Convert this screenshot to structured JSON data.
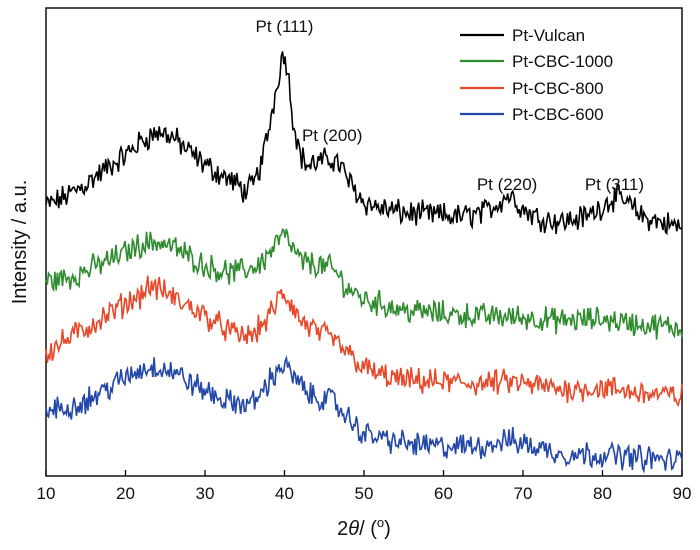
{
  "chart_data": {
    "type": "line",
    "xlabel_main": "2",
    "xlabel_theta": "θ",
    "xlabel_rest": "/ (",
    "xlabel_sup": "o",
    "xlabel_close": ")",
    "ylabel": "Intensity / a.u.",
    "xlim": [
      10,
      90
    ],
    "xticks": [
      "10",
      "20",
      "30",
      "40",
      "50",
      "60",
      "70",
      "80",
      "90"
    ],
    "grid": false,
    "legend_position": "top-right",
    "series": [
      {
        "name": "Pt-Vulcan",
        "color": "#000000",
        "points": [
          [
            10,
            -0.15
          ],
          [
            12,
            -0.05
          ],
          [
            15,
            0.15
          ],
          [
            18,
            0.4
          ],
          [
            20,
            0.55
          ],
          [
            22,
            0.75
          ],
          [
            24,
            0.87
          ],
          [
            25,
            0.85
          ],
          [
            26,
            0.8
          ],
          [
            28,
            0.6
          ],
          [
            30,
            0.42
          ],
          [
            32,
            0.28
          ],
          [
            34,
            0.15
          ],
          [
            35,
            0.05
          ],
          [
            36,
            0.12
          ],
          [
            37,
            0.4
          ],
          [
            38,
            0.9
          ],
          [
            39,
            1.5
          ],
          [
            39.7,
            1.95
          ],
          [
            40.3,
            1.85
          ],
          [
            41,
            1.1
          ],
          [
            42,
            0.55
          ],
          [
            43,
            0.4
          ],
          [
            44,
            0.45
          ],
          [
            46,
            0.5
          ],
          [
            47,
            0.42
          ],
          [
            48,
            0.2
          ],
          [
            50,
            -0.1
          ],
          [
            52,
            -0.18
          ],
          [
            55,
            -0.25
          ],
          [
            58,
            -0.27
          ],
          [
            62,
            -0.3
          ],
          [
            65,
            -0.25
          ],
          [
            67,
            -0.1
          ],
          [
            68,
            0.0
          ],
          [
            69,
            -0.05
          ],
          [
            70,
            -0.2
          ],
          [
            72,
            -0.32
          ],
          [
            75,
            -0.37
          ],
          [
            78,
            -0.3
          ],
          [
            80,
            -0.15
          ],
          [
            81.5,
            -0.03
          ],
          [
            83,
            -0.1
          ],
          [
            85,
            -0.3
          ],
          [
            88,
            -0.4
          ],
          [
            90,
            -0.45
          ]
        ]
      },
      {
        "name": "Pt-CBC-1000",
        "color": "#2e8b2e",
        "points": [
          [
            10,
            -1.2
          ],
          [
            13,
            -1.15
          ],
          [
            16,
            -1.0
          ],
          [
            19,
            -0.85
          ],
          [
            22,
            -0.68
          ],
          [
            24,
            -0.65
          ],
          [
            26,
            -0.72
          ],
          [
            28,
            -0.85
          ],
          [
            30,
            -0.98
          ],
          [
            33,
            -1.08
          ],
          [
            35,
            -1.05
          ],
          [
            37,
            -0.95
          ],
          [
            38.5,
            -0.75
          ],
          [
            39.7,
            -0.55
          ],
          [
            40.5,
            -0.65
          ],
          [
            42,
            -0.92
          ],
          [
            44,
            -0.97
          ],
          [
            46,
            -1.02
          ],
          [
            48,
            -1.3
          ],
          [
            50,
            -1.45
          ],
          [
            55,
            -1.6
          ],
          [
            60,
            -1.65
          ],
          [
            65,
            -1.68
          ],
          [
            70,
            -1.7
          ],
          [
            75,
            -1.75
          ],
          [
            80,
            -1.72
          ],
          [
            85,
            -1.8
          ],
          [
            90,
            -1.85
          ]
        ]
      },
      {
        "name": "Pt-CBC-800",
        "color": "#e8482a",
        "points": [
          [
            10,
            -2.2
          ],
          [
            12,
            -2.05
          ],
          [
            15,
            -1.85
          ],
          [
            18,
            -1.65
          ],
          [
            20,
            -1.5
          ],
          [
            22,
            -1.38
          ],
          [
            23,
            -1.25
          ],
          [
            25,
            -1.35
          ],
          [
            27,
            -1.5
          ],
          [
            29,
            -1.6
          ],
          [
            31,
            -1.75
          ],
          [
            34,
            -1.95
          ],
          [
            36,
            -1.95
          ],
          [
            38,
            -1.7
          ],
          [
            39.6,
            -1.38
          ],
          [
            40.5,
            -1.45
          ],
          [
            42,
            -1.75
          ],
          [
            44,
            -1.9
          ],
          [
            46,
            -2.0
          ],
          [
            48,
            -2.2
          ],
          [
            50,
            -2.4
          ],
          [
            52,
            -2.5
          ],
          [
            55,
            -2.58
          ],
          [
            60,
            -2.6
          ],
          [
            65,
            -2.62
          ],
          [
            68,
            -2.6
          ],
          [
            70,
            -2.62
          ],
          [
            75,
            -2.7
          ],
          [
            80,
            -2.68
          ],
          [
            85,
            -2.75
          ],
          [
            90,
            -2.8
          ]
        ]
      },
      {
        "name": "Pt-CBC-600",
        "color": "#2347a8",
        "points": [
          [
            10,
            -3.0
          ],
          [
            13,
            -2.95
          ],
          [
            16,
            -2.8
          ],
          [
            19,
            -2.6
          ],
          [
            22,
            -2.42
          ],
          [
            24,
            -2.38
          ],
          [
            26,
            -2.45
          ],
          [
            28,
            -2.6
          ],
          [
            30,
            -2.72
          ],
          [
            33,
            -2.88
          ],
          [
            36,
            -2.9
          ],
          [
            38,
            -2.6
          ],
          [
            39.7,
            -2.35
          ],
          [
            41,
            -2.5
          ],
          [
            43,
            -2.78
          ],
          [
            46,
            -2.85
          ],
          [
            48,
            -3.1
          ],
          [
            50,
            -3.32
          ],
          [
            55,
            -3.45
          ],
          [
            60,
            -3.5
          ],
          [
            65,
            -3.48
          ],
          [
            68,
            -3.4
          ],
          [
            70,
            -3.45
          ],
          [
            75,
            -3.6
          ],
          [
            80,
            -3.6
          ],
          [
            85,
            -3.65
          ],
          [
            90,
            -3.7
          ]
        ]
      }
    ],
    "annotations": [
      {
        "text": "Pt (111)",
        "x": 40
      },
      {
        "text": "Pt (200)",
        "x": 46
      },
      {
        "text": "Pt (220)",
        "x": 68
      },
      {
        "text": "Pt (311)",
        "x": 81.5
      }
    ]
  }
}
